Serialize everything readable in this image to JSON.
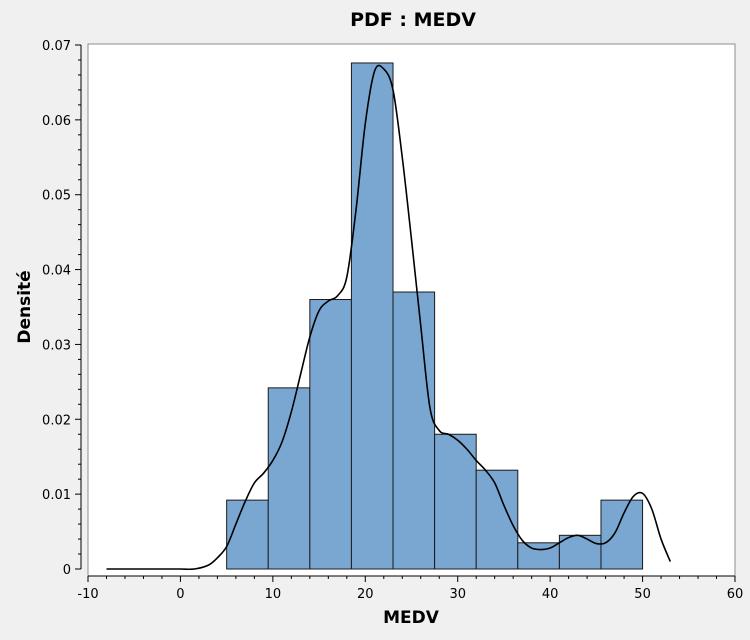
{
  "chart_data": {
    "type": "bar",
    "title": "PDF : MEDV",
    "xlabel": "MEDV",
    "ylabel": "Densité",
    "xlim": [
      -10,
      60
    ],
    "ylim": [
      0,
      0.07
    ],
    "x_ticks": [
      "-10",
      "0",
      "10",
      "20",
      "30",
      "40",
      "50",
      "60"
    ],
    "y_ticks": [
      "0",
      "0.01",
      "0.02",
      "0.03",
      "0.04",
      "0.05",
      "0.06",
      "0.07"
    ],
    "grid": false,
    "legend": "none",
    "histogram": {
      "bin_edges": [
        5,
        9.5,
        14,
        18.5,
        23,
        27.5,
        32,
        36.5,
        41,
        45.5,
        50
      ],
      "density": [
        0.0092,
        0.0242,
        0.036,
        0.0676,
        0.037,
        0.018,
        0.0132,
        0.0035,
        0.0045,
        0.0092
      ]
    },
    "kde": {
      "x": [
        -8,
        -5,
        -2,
        0,
        1.5,
        3,
        4,
        5,
        6,
        7,
        8,
        9,
        10,
        11,
        12,
        13,
        14,
        15,
        16,
        17,
        18,
        19,
        20,
        21,
        22,
        23,
        24,
        25,
        26,
        27,
        28,
        29,
        30,
        31,
        32,
        33,
        34,
        35,
        36,
        37,
        38,
        39,
        40,
        41,
        42,
        43,
        44,
        45,
        46,
        47,
        48,
        49,
        50,
        51,
        52,
        53
      ],
      "y": [
        0,
        0,
        0,
        0,
        0,
        0.0005,
        0.0015,
        0.003,
        0.006,
        0.009,
        0.0115,
        0.0128,
        0.0145,
        0.017,
        0.021,
        0.026,
        0.031,
        0.0345,
        0.0358,
        0.0365,
        0.039,
        0.048,
        0.0595,
        0.0665,
        0.0668,
        0.064,
        0.055,
        0.044,
        0.0325,
        0.0215,
        0.0185,
        0.018,
        0.0172,
        0.016,
        0.0145,
        0.0132,
        0.0115,
        0.0085,
        0.0058,
        0.0038,
        0.0028,
        0.0026,
        0.0028,
        0.0035,
        0.0042,
        0.0045,
        0.004,
        0.0034,
        0.0035,
        0.0048,
        0.0075,
        0.0097,
        0.0101,
        0.008,
        0.004,
        0.001
      ]
    },
    "colors": {
      "bar_fill": "#7aa7d1",
      "bar_edge": "#1b1b1b",
      "curve": "#000000",
      "plot_background": "#ffffff",
      "page_background": "#f0f0f0"
    }
  }
}
